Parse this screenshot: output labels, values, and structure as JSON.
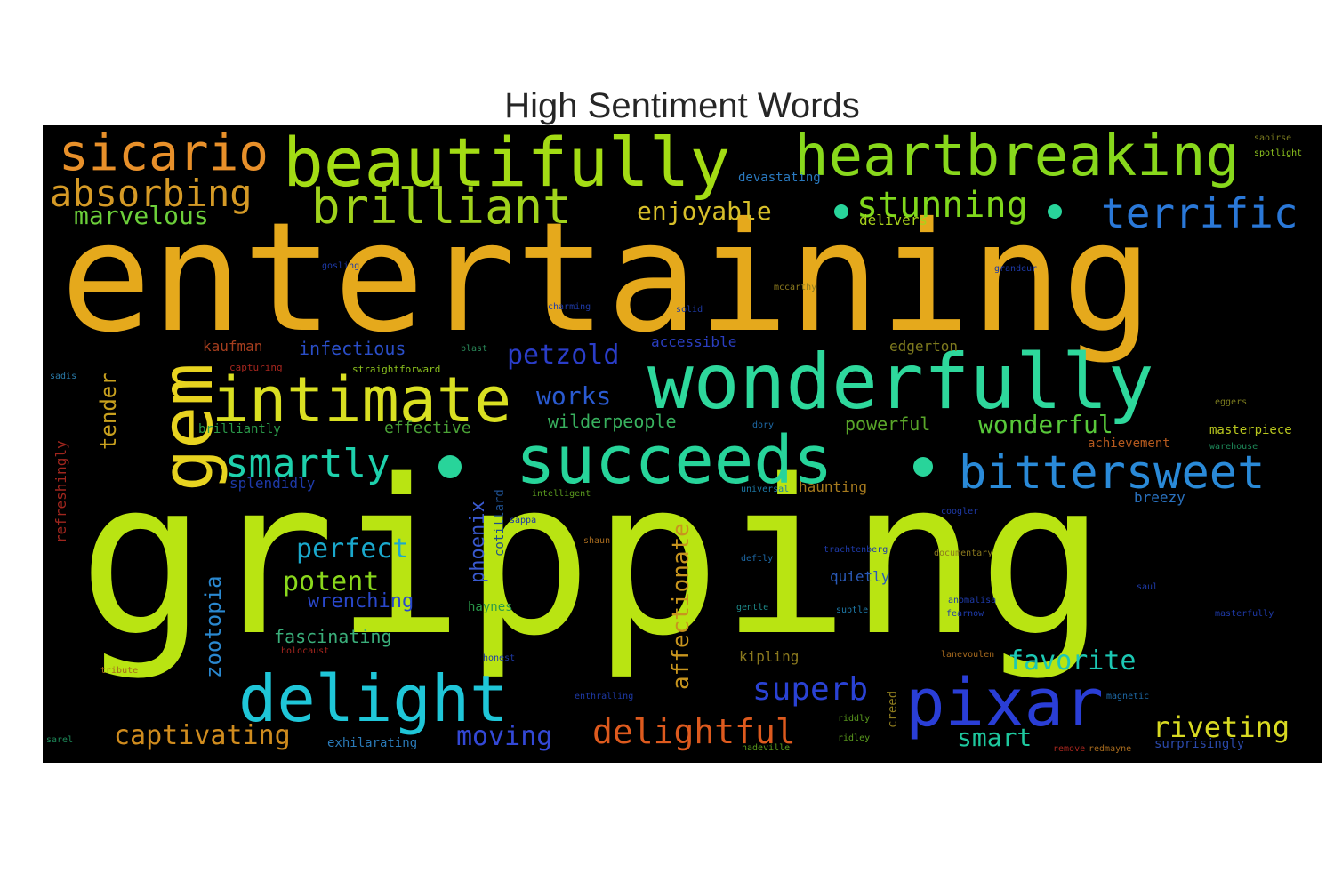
{
  "chart_data": {
    "type": "wordcloud",
    "title": "High Sentiment Words",
    "background": "#000000",
    "words": [
      {
        "text": "gripping",
        "color": "#b9e412"
      },
      {
        "text": "entertaining",
        "color": "#e5a91c"
      },
      {
        "text": "beautifully",
        "color": "#a3dc14"
      },
      {
        "text": "heartbreaking",
        "color": "#88d81c"
      },
      {
        "text": "wonderfully",
        "color": "#2ed89c"
      },
      {
        "text": "succeeds",
        "color": "#27d49a"
      },
      {
        "text": "sicario",
        "color": "#e8902a"
      },
      {
        "text": "absorbing",
        "color": "#d59a26"
      },
      {
        "text": "brilliant",
        "color": "#a0d21c"
      },
      {
        "text": "intimate",
        "color": "#d9df22"
      },
      {
        "text": "gem",
        "color": "#e7d320"
      },
      {
        "text": "delight",
        "color": "#1fc6d8"
      },
      {
        "text": "pixar",
        "color": "#2a3ed6"
      },
      {
        "text": "bittersweet",
        "color": "#2a8ad8"
      },
      {
        "text": "terrific",
        "color": "#2a78d8"
      },
      {
        "text": "smartly",
        "color": "#1ed0ac"
      },
      {
        "text": "stunning",
        "color": "#80d81c"
      },
      {
        "text": "marvelous",
        "color": "#6ccf3a"
      },
      {
        "text": "enjoyable",
        "color": "#d7bf2a"
      },
      {
        "text": "delightful",
        "color": "#dd5a1e"
      },
      {
        "text": "riveting",
        "color": "#d8d922"
      },
      {
        "text": "captivating",
        "color": "#d08c1e"
      },
      {
        "text": "superb",
        "color": "#2a42d4"
      },
      {
        "text": "favorite",
        "color": "#1cc8b4"
      },
      {
        "text": "perfect",
        "color": "#1aa8cc"
      },
      {
        "text": "potent",
        "color": "#8ad81c"
      },
      {
        "text": "moving",
        "color": "#3348d6"
      },
      {
        "text": "smart",
        "color": "#1ec89e"
      },
      {
        "text": "petzold",
        "color": "#2a3dc8"
      },
      {
        "text": "works",
        "color": "#2a5ad0"
      },
      {
        "text": "wonderful",
        "color": "#58c83a"
      },
      {
        "text": "affectionate",
        "color": "#c8951e"
      },
      {
        "text": "zootopia",
        "color": "#2a88d0"
      },
      {
        "text": "tender",
        "color": "#c8a01e"
      },
      {
        "text": "phoenix",
        "color": "#3a5ad0"
      },
      {
        "text": "wrenching",
        "color": "#2a48cc"
      },
      {
        "text": "fascinating",
        "color": "#3aae7a"
      },
      {
        "text": "infectious",
        "color": "#2a4ec8"
      },
      {
        "text": "wilderpeople",
        "color": "#38b05e"
      },
      {
        "text": "powerful",
        "color": "#5aa62a"
      },
      {
        "text": "effective",
        "color": "#4aa236"
      },
      {
        "text": "delivers",
        "color": "#a8d21c"
      },
      {
        "text": "haunting",
        "color": "#a67a1e"
      },
      {
        "text": "breezy",
        "color": "#2a72c0"
      },
      {
        "text": "masterpiece",
        "color": "#b8c61e"
      },
      {
        "text": "achievement",
        "color": "#b65a1e"
      },
      {
        "text": "accessible",
        "color": "#2a3ec0"
      },
      {
        "text": "kaufman",
        "color": "#a63e1e"
      },
      {
        "text": "edgerton",
        "color": "#7e7a1e"
      },
      {
        "text": "splendidly",
        "color": "#1e3aa8"
      },
      {
        "text": "brilliantly",
        "color": "#2a9a4a"
      },
      {
        "text": "refreshingly",
        "color": "#a0261e"
      },
      {
        "text": "devastating",
        "color": "#2a7ac0"
      },
      {
        "text": "quietly",
        "color": "#2a5ab8"
      },
      {
        "text": "exhilarating",
        "color": "#2a7ab8"
      },
      {
        "text": "creed",
        "color": "#8c7a1e"
      },
      {
        "text": "kipling",
        "color": "#8c7a1e"
      },
      {
        "text": "cotillard",
        "color": "#1e4e8c"
      },
      {
        "text": "haynes",
        "color": "#2a9a4a"
      },
      {
        "text": "surprisingly",
        "color": "#2a48a8"
      },
      {
        "text": "straightforward",
        "color": "#8cc21e"
      },
      {
        "text": "capturing",
        "color": "#a6261e"
      },
      {
        "text": "spotlight",
        "color": "#8cc21e"
      },
      {
        "text": "saoirse",
        "color": "#7a7a1e"
      },
      {
        "text": "gosling",
        "color": "#1e3aa8"
      },
      {
        "text": "grandeur",
        "color": "#1e3aa8"
      },
      {
        "text": "mccarthy",
        "color": "#8c7a1e"
      },
      {
        "text": "charming",
        "color": "#1e3aa8"
      },
      {
        "text": "solid",
        "color": "#1e3aa8"
      },
      {
        "text": "blast",
        "color": "#2a8a5a"
      },
      {
        "text": "sadis",
        "color": "#2a7aa8"
      },
      {
        "text": "dory",
        "color": "#1e6aa8"
      },
      {
        "text": "intelligent",
        "color": "#5a9a1e"
      },
      {
        "text": "universal",
        "color": "#1e7aa8"
      },
      {
        "text": "coogler",
        "color": "#1e3aa8"
      },
      {
        "text": "trachtenberg",
        "color": "#1e3aa8"
      },
      {
        "text": "documentary",
        "color": "#8c7a1e"
      },
      {
        "text": "deftly",
        "color": "#1e6aa8"
      },
      {
        "text": "shaun",
        "color": "#a66a1e"
      },
      {
        "text": "sappa",
        "color": "#1e3aa8"
      },
      {
        "text": "gentle",
        "color": "#1e8a8a"
      },
      {
        "text": "subtle",
        "color": "#1e7aa8"
      },
      {
        "text": "anomalisa",
        "color": "#1e3aa8"
      },
      {
        "text": "fearnow",
        "color": "#1e3aa8"
      },
      {
        "text": "saul",
        "color": "#1e3aa8"
      },
      {
        "text": "masterfully",
        "color": "#1e3aa8"
      },
      {
        "text": "magnetic",
        "color": "#1e6aa8"
      },
      {
        "text": "holocaust",
        "color": "#a6261e"
      },
      {
        "text": "honest",
        "color": "#1e3aa8"
      },
      {
        "text": "enthralling",
        "color": "#1e3aa8"
      },
      {
        "text": "tribute",
        "color": "#a66a1e"
      },
      {
        "text": "riddly",
        "color": "#5a9a1e"
      },
      {
        "text": "ridley",
        "color": "#5a9a1e"
      },
      {
        "text": "nadeville",
        "color": "#5a9a1e"
      },
      {
        "text": "lanevoulen",
        "color": "#a66a1e"
      },
      {
        "text": "remove",
        "color": "#a6261e"
      },
      {
        "text": "redmayne",
        "color": "#a66a1e"
      },
      {
        "text": "sarel",
        "color": "#1e8a5a"
      },
      {
        "text": "eggers",
        "color": "#7a7a1e"
      },
      {
        "text": "warehouse",
        "color": "#1e8a5a"
      }
    ]
  }
}
